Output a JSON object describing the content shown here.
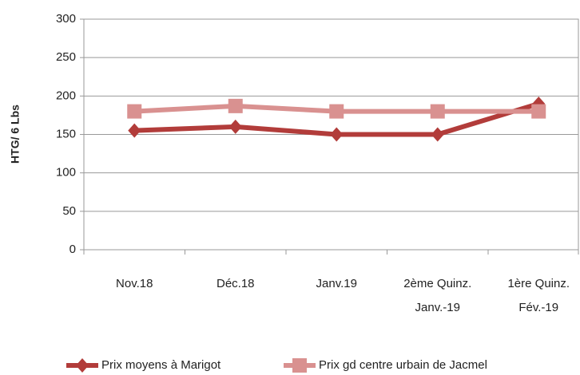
{
  "chart_data": {
    "type": "line",
    "categories": [
      "Nov.18",
      "Déc.18",
      "Janv.19",
      "2ème  Quinz.\nJanv.-19",
      "1ère  Quinz.\nFév.-19"
    ],
    "series": [
      {
        "name": "Prix moyens à Marigot",
        "color": "#b23c3a",
        "marker": "diamond",
        "values": [
          155,
          160,
          150,
          150,
          190
        ]
      },
      {
        "name": "Prix gd centre urbain de Jacmel",
        "color": "#d99190",
        "marker": "square",
        "values": [
          180,
          187,
          180,
          180,
          180
        ]
      }
    ],
    "ylabel": "HTG/ 6 Lbs",
    "ylim": [
      0,
      300
    ],
    "yticks": [
      0,
      50,
      100,
      150,
      200,
      250,
      300
    ],
    "grid": true,
    "legend": "bottom"
  }
}
